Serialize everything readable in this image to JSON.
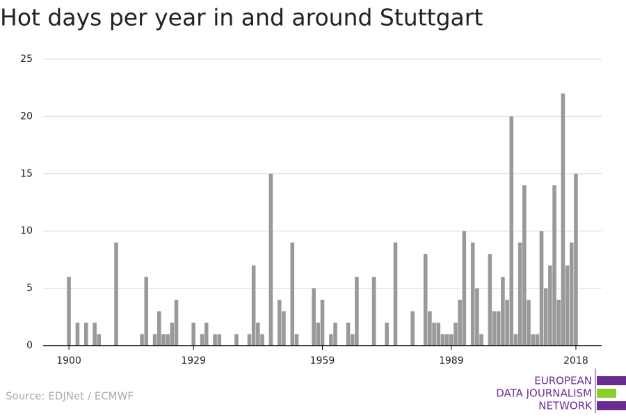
{
  "chart_data": {
    "type": "bar",
    "title": "Hot days per year in and around Stuttgart",
    "source": "Source: EDJNet / ECMWF",
    "logo": [
      "EUROPEAN",
      "DATA JOURNALISM",
      "NETWORK"
    ],
    "color": "#999999",
    "grid": true,
    "x": [
      1900,
      1901,
      1902,
      1903,
      1904,
      1905,
      1906,
      1907,
      1908,
      1909,
      1910,
      1911,
      1912,
      1913,
      1914,
      1915,
      1916,
      1917,
      1918,
      1919,
      1920,
      1921,
      1922,
      1923,
      1924,
      1925,
      1926,
      1927,
      1928,
      1929,
      1930,
      1931,
      1932,
      1933,
      1934,
      1935,
      1936,
      1937,
      1938,
      1939,
      1940,
      1941,
      1942,
      1943,
      1944,
      1945,
      1946,
      1947,
      1948,
      1949,
      1950,
      1951,
      1952,
      1953,
      1954,
      1955,
      1956,
      1957,
      1958,
      1959,
      1960,
      1961,
      1962,
      1963,
      1964,
      1965,
      1966,
      1967,
      1968,
      1969,
      1970,
      1971,
      1972,
      1973,
      1974,
      1975,
      1976,
      1977,
      1978,
      1979,
      1980,
      1981,
      1982,
      1983,
      1984,
      1985,
      1986,
      1987,
      1988,
      1989,
      1990,
      1991,
      1992,
      1993,
      1994,
      1995,
      1996,
      1997,
      1998,
      1999,
      2000,
      2001,
      2002,
      2003,
      2004,
      2005,
      2006,
      2007,
      2008,
      2009,
      2010,
      2011,
      2012,
      2013,
      2014,
      2015,
      2016,
      2017,
      2018
    ],
    "values": [
      6,
      0,
      2,
      0,
      2,
      0,
      2,
      1,
      0,
      0,
      0,
      9,
      0,
      0,
      0,
      0,
      0,
      1,
      6,
      0,
      1,
      3,
      1,
      1,
      2,
      4,
      0,
      0,
      0,
      2,
      0,
      1,
      2,
      0,
      1,
      1,
      0,
      0,
      0,
      1,
      0,
      0,
      1,
      7,
      2,
      1,
      0,
      15,
      0,
      4,
      3,
      0,
      9,
      1,
      0,
      0,
      0,
      5,
      2,
      4,
      0,
      1,
      2,
      0,
      0,
      2,
      1,
      6,
      0,
      0,
      0,
      6,
      0,
      0,
      2,
      0,
      9,
      0,
      0,
      0,
      3,
      0,
      0,
      8,
      3,
      2,
      2,
      1,
      1,
      1,
      2,
      4,
      10,
      0,
      9,
      5,
      1,
      0,
      8,
      3,
      3,
      6,
      4,
      20,
      1,
      9,
      14,
      4,
      1,
      1,
      10,
      5,
      7,
      14,
      4,
      22,
      7,
      9,
      15
    ],
    "xlim": [
      1894,
      2024
    ],
    "xticks": [
      1900,
      1929,
      1959,
      1989,
      2018
    ],
    "ylim": [
      0,
      25
    ],
    "yticks": [
      0,
      5,
      10,
      15,
      20,
      25
    ]
  }
}
